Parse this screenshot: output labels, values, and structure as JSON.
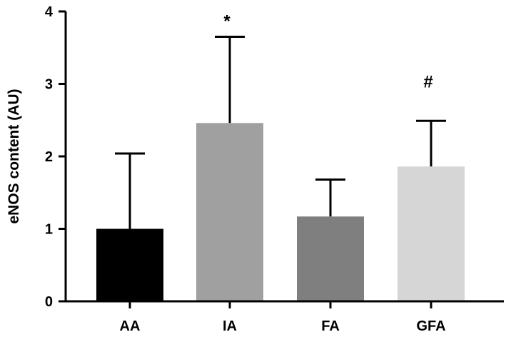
{
  "chart_data": {
    "type": "bar",
    "title": "",
    "xlabel": "",
    "ylabel": "eNOS content (AU)",
    "ylim": [
      0,
      4
    ],
    "yticks": [
      0,
      1,
      2,
      3,
      4
    ],
    "categories": [
      "AA",
      "IA",
      "FA",
      "GFA"
    ],
    "values": [
      1.0,
      2.46,
      1.17,
      1.86
    ],
    "error_upper": [
      1.04,
      1.19,
      0.51,
      0.63
    ],
    "bar_colors": [
      "#000000",
      "#a0a0a0",
      "#7f7f7f",
      "#d6d6d6"
    ],
    "annotations": [
      "",
      "*",
      "",
      "#"
    ],
    "grid": false,
    "legend": "none"
  }
}
